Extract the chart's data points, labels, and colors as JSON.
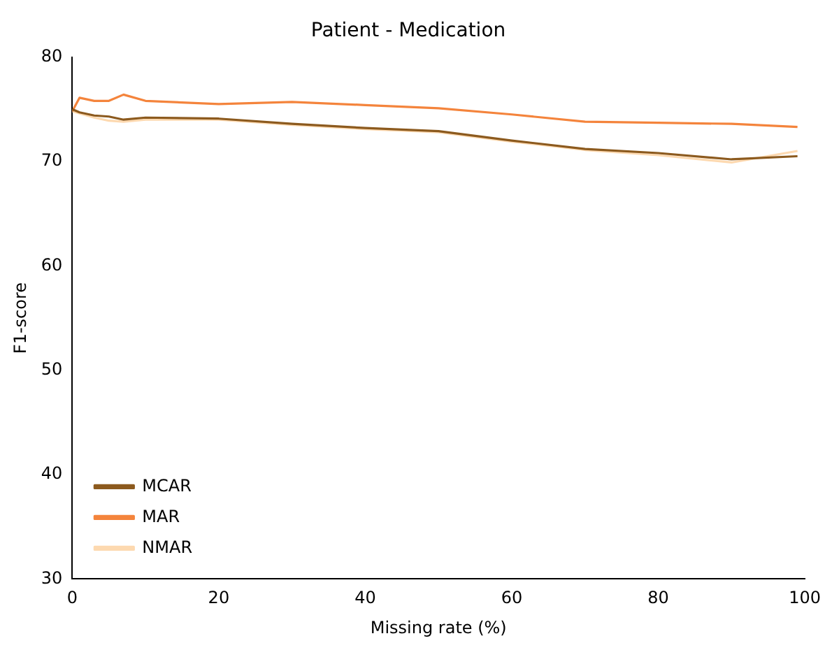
{
  "chart_data": {
    "type": "line",
    "title": "Patient - Medication",
    "xlabel": "Missing rate (%)",
    "ylabel": "F1-score",
    "x": [
      0,
      1,
      3,
      5,
      7,
      10,
      20,
      30,
      40,
      50,
      60,
      70,
      80,
      90,
      99
    ],
    "series": [
      {
        "name": "MCAR",
        "color": "#8c5a1e",
        "values": [
          75.0,
          74.7,
          74.4,
          74.3,
          74.0,
          74.2,
          74.1,
          73.6,
          73.2,
          72.9,
          72.0,
          71.2,
          70.8,
          70.2,
          70.5
        ]
      },
      {
        "name": "MAR",
        "color": "#f4843c",
        "values": [
          74.8,
          76.1,
          75.8,
          75.8,
          76.4,
          75.8,
          75.5,
          75.7,
          75.4,
          75.1,
          74.5,
          73.8,
          73.7,
          73.6,
          73.3
        ]
      },
      {
        "name": "NMAR",
        "color": "#fdd9b0",
        "values": [
          74.8,
          74.6,
          74.2,
          73.9,
          73.8,
          74.0,
          74.0,
          73.5,
          73.1,
          72.8,
          71.9,
          71.1,
          70.6,
          69.9,
          71.0
        ]
      }
    ],
    "xlim": [
      0,
      100
    ],
    "xticks": [
      0,
      20,
      40,
      60,
      80,
      100
    ],
    "ylim": [
      30,
      80
    ],
    "yticks": [
      30,
      40,
      50,
      60,
      70,
      80
    ],
    "grid": false,
    "legend": "bottom left"
  }
}
